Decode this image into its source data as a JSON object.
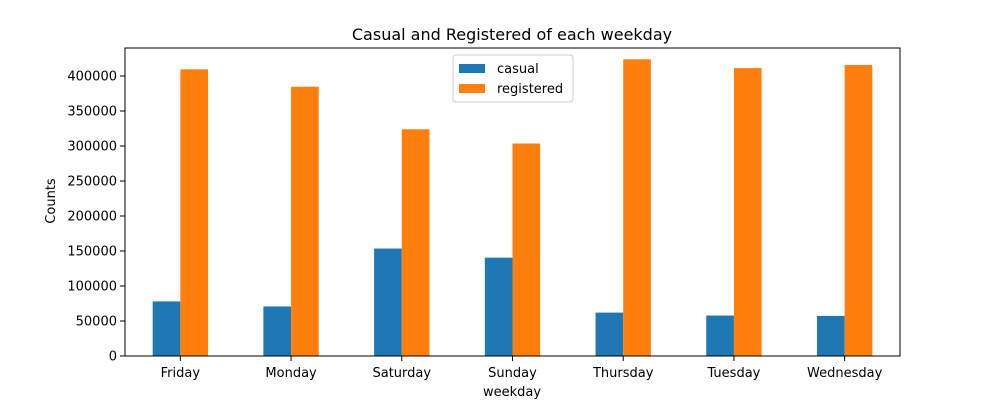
{
  "chart_data": {
    "type": "bar",
    "title": "Casual and Registered of each weekday",
    "xlabel": "weekday",
    "ylabel": "Counts",
    "categories": [
      "Friday",
      "Monday",
      "Saturday",
      "Sunday",
      "Thursday",
      "Tuesday",
      "Wednesday"
    ],
    "series": [
      {
        "name": "casual",
        "color": "#1f77b4",
        "values": [
          78000,
          70800,
          153500,
          140500,
          62000,
          57800,
          57300
        ]
      },
      {
        "name": "registered",
        "color": "#ff7f0e",
        "values": [
          409500,
          384700,
          323900,
          303600,
          423900,
          411300,
          415700
        ]
      }
    ],
    "ylim": [
      0,
      440000
    ],
    "yticks": [
      0,
      50000,
      100000,
      150000,
      200000,
      250000,
      300000,
      350000,
      400000
    ],
    "ytick_labels": [
      "0",
      "50000",
      "100000",
      "150000",
      "200000",
      "250000",
      "300000",
      "350000",
      "400000"
    ],
    "grid": false,
    "legend_position": "top-center"
  }
}
